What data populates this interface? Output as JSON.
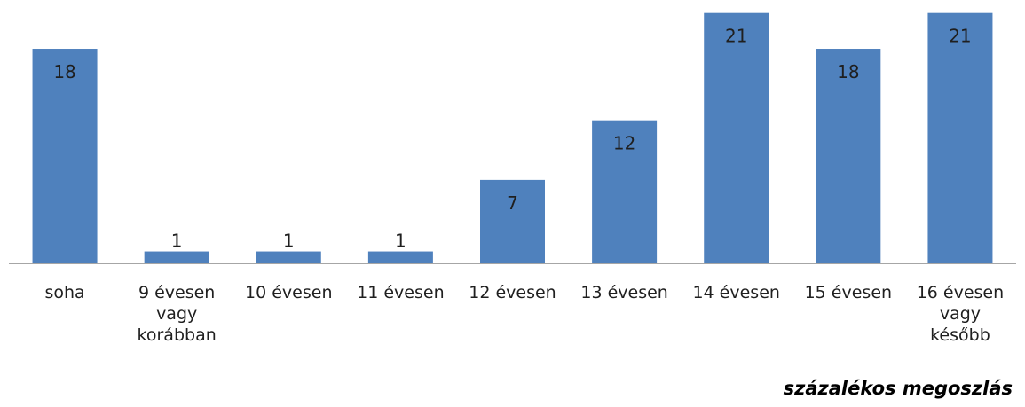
{
  "chart_data": {
    "type": "bar",
    "categories": [
      [
        "soha"
      ],
      [
        "9 évesen",
        "vagy",
        "korábban"
      ],
      [
        "10 évesen"
      ],
      [
        "11 évesen"
      ],
      [
        "12 évesen"
      ],
      [
        "13 évesen"
      ],
      [
        "14 évesen"
      ],
      [
        "15 évesen"
      ],
      [
        "16 évesen",
        "vagy",
        "később"
      ]
    ],
    "values": [
      18,
      1,
      1,
      1,
      7,
      12,
      21,
      18,
      21
    ],
    "data_labels": [
      "18",
      "1",
      "1",
      "1",
      "7",
      "12",
      "21",
      "18",
      "21"
    ],
    "note": "százalékos megoszlás",
    "ylim": [
      0,
      21.2
    ],
    "grid": false,
    "legend": "none",
    "bar_color": "#4f81bd"
  }
}
